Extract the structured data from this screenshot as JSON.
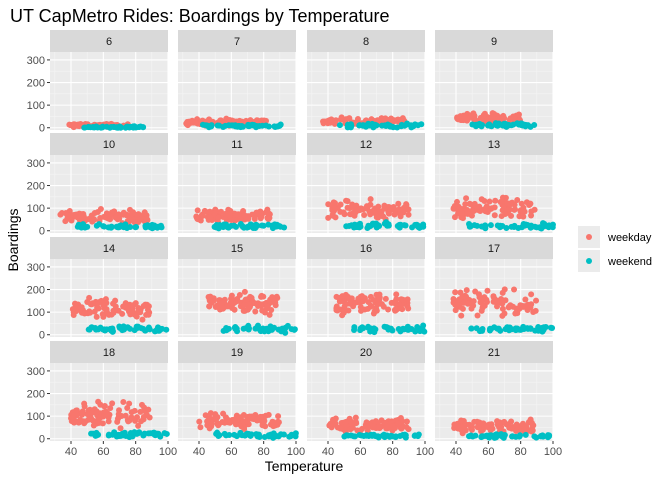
{
  "chart_data": {
    "type": "scatter",
    "title": "UT CapMetro Rides: Boardings by Temperature",
    "xlabel": "Temperature",
    "ylabel": "Boardings",
    "xlim": [
      27,
      100
    ],
    "ylim": [
      -10,
      335
    ],
    "x_ticks": [
      40,
      60,
      80,
      100
    ],
    "y_ticks": [
      0,
      100,
      200,
      300
    ],
    "facet_by": "hour",
    "panels": [
      {
        "label": "6",
        "wd_temp": [
          38,
          76
        ],
        "wd_base": 10,
        "wd_spread": 5,
        "we_base": 3,
        "we_spread": 3
      },
      {
        "label": "7",
        "wd_temp": [
          32,
          82
        ],
        "wd_base": 25,
        "wd_spread": 10,
        "we_base": 8,
        "we_spread": 5
      },
      {
        "label": "8",
        "wd_temp": [
          35,
          88
        ],
        "wd_base": 28,
        "wd_spread": 12,
        "we_base": 10,
        "we_spread": 6
      },
      {
        "label": "9",
        "wd_temp": [
          40,
          80
        ],
        "wd_base": 42,
        "wd_spread": 15,
        "we_base": 12,
        "we_spread": 6
      },
      {
        "label": "10",
        "wd_temp": [
          33,
          88
        ],
        "wd_base": 60,
        "wd_spread": 22,
        "we_base": 18,
        "we_spread": 8
      },
      {
        "label": "11",
        "wd_temp": [
          38,
          85
        ],
        "wd_base": 65,
        "wd_spread": 22,
        "we_base": 20,
        "we_spread": 8
      },
      {
        "label": "12",
        "wd_temp": [
          40,
          90
        ],
        "wd_base": 90,
        "wd_spread": 30,
        "we_base": 22,
        "we_spread": 10
      },
      {
        "label": "13",
        "wd_temp": [
          38,
          90
        ],
        "wd_base": 100,
        "wd_spread": 32,
        "we_base": 22,
        "we_spread": 10
      },
      {
        "label": "14",
        "wd_temp": [
          40,
          90
        ],
        "wd_base": 115,
        "wd_spread": 35,
        "we_base": 25,
        "we_spread": 10
      },
      {
        "label": "15",
        "wd_temp": [
          45,
          90
        ],
        "wd_base": 140,
        "wd_spread": 35,
        "we_base": 25,
        "we_spread": 10
      },
      {
        "label": "16",
        "wd_temp": [
          45,
          90
        ],
        "wd_base": 140,
        "wd_spread": 38,
        "we_base": 25,
        "we_spread": 10
      },
      {
        "label": "17",
        "wd_temp": [
          38,
          90
        ],
        "wd_base": 140,
        "wd_spread": 40,
        "we_base": 25,
        "we_spread": 10
      },
      {
        "label": "18",
        "wd_temp": [
          40,
          90
        ],
        "wd_base": 110,
        "wd_spread": 38,
        "we_base": 20,
        "we_spread": 10
      },
      {
        "label": "19",
        "wd_temp": [
          40,
          90
        ],
        "wd_base": 80,
        "wd_spread": 25,
        "we_base": 15,
        "we_spread": 8
      },
      {
        "label": "20",
        "wd_temp": [
          40,
          90
        ],
        "wd_base": 60,
        "wd_spread": 20,
        "we_base": 12,
        "we_spread": 6
      },
      {
        "label": "21",
        "wd_temp": [
          38,
          88
        ],
        "wd_base": 55,
        "wd_spread": 20,
        "we_base": 12,
        "we_spread": 6
      }
    ],
    "series": [
      {
        "name": "weekday",
        "color": "#F8766D"
      },
      {
        "name": "weekend",
        "color": "#00BFC4"
      }
    ],
    "legend_position": "right",
    "grid": true,
    "panel_background": "#EBEBEB",
    "strip_background": "#D9D9D9"
  }
}
